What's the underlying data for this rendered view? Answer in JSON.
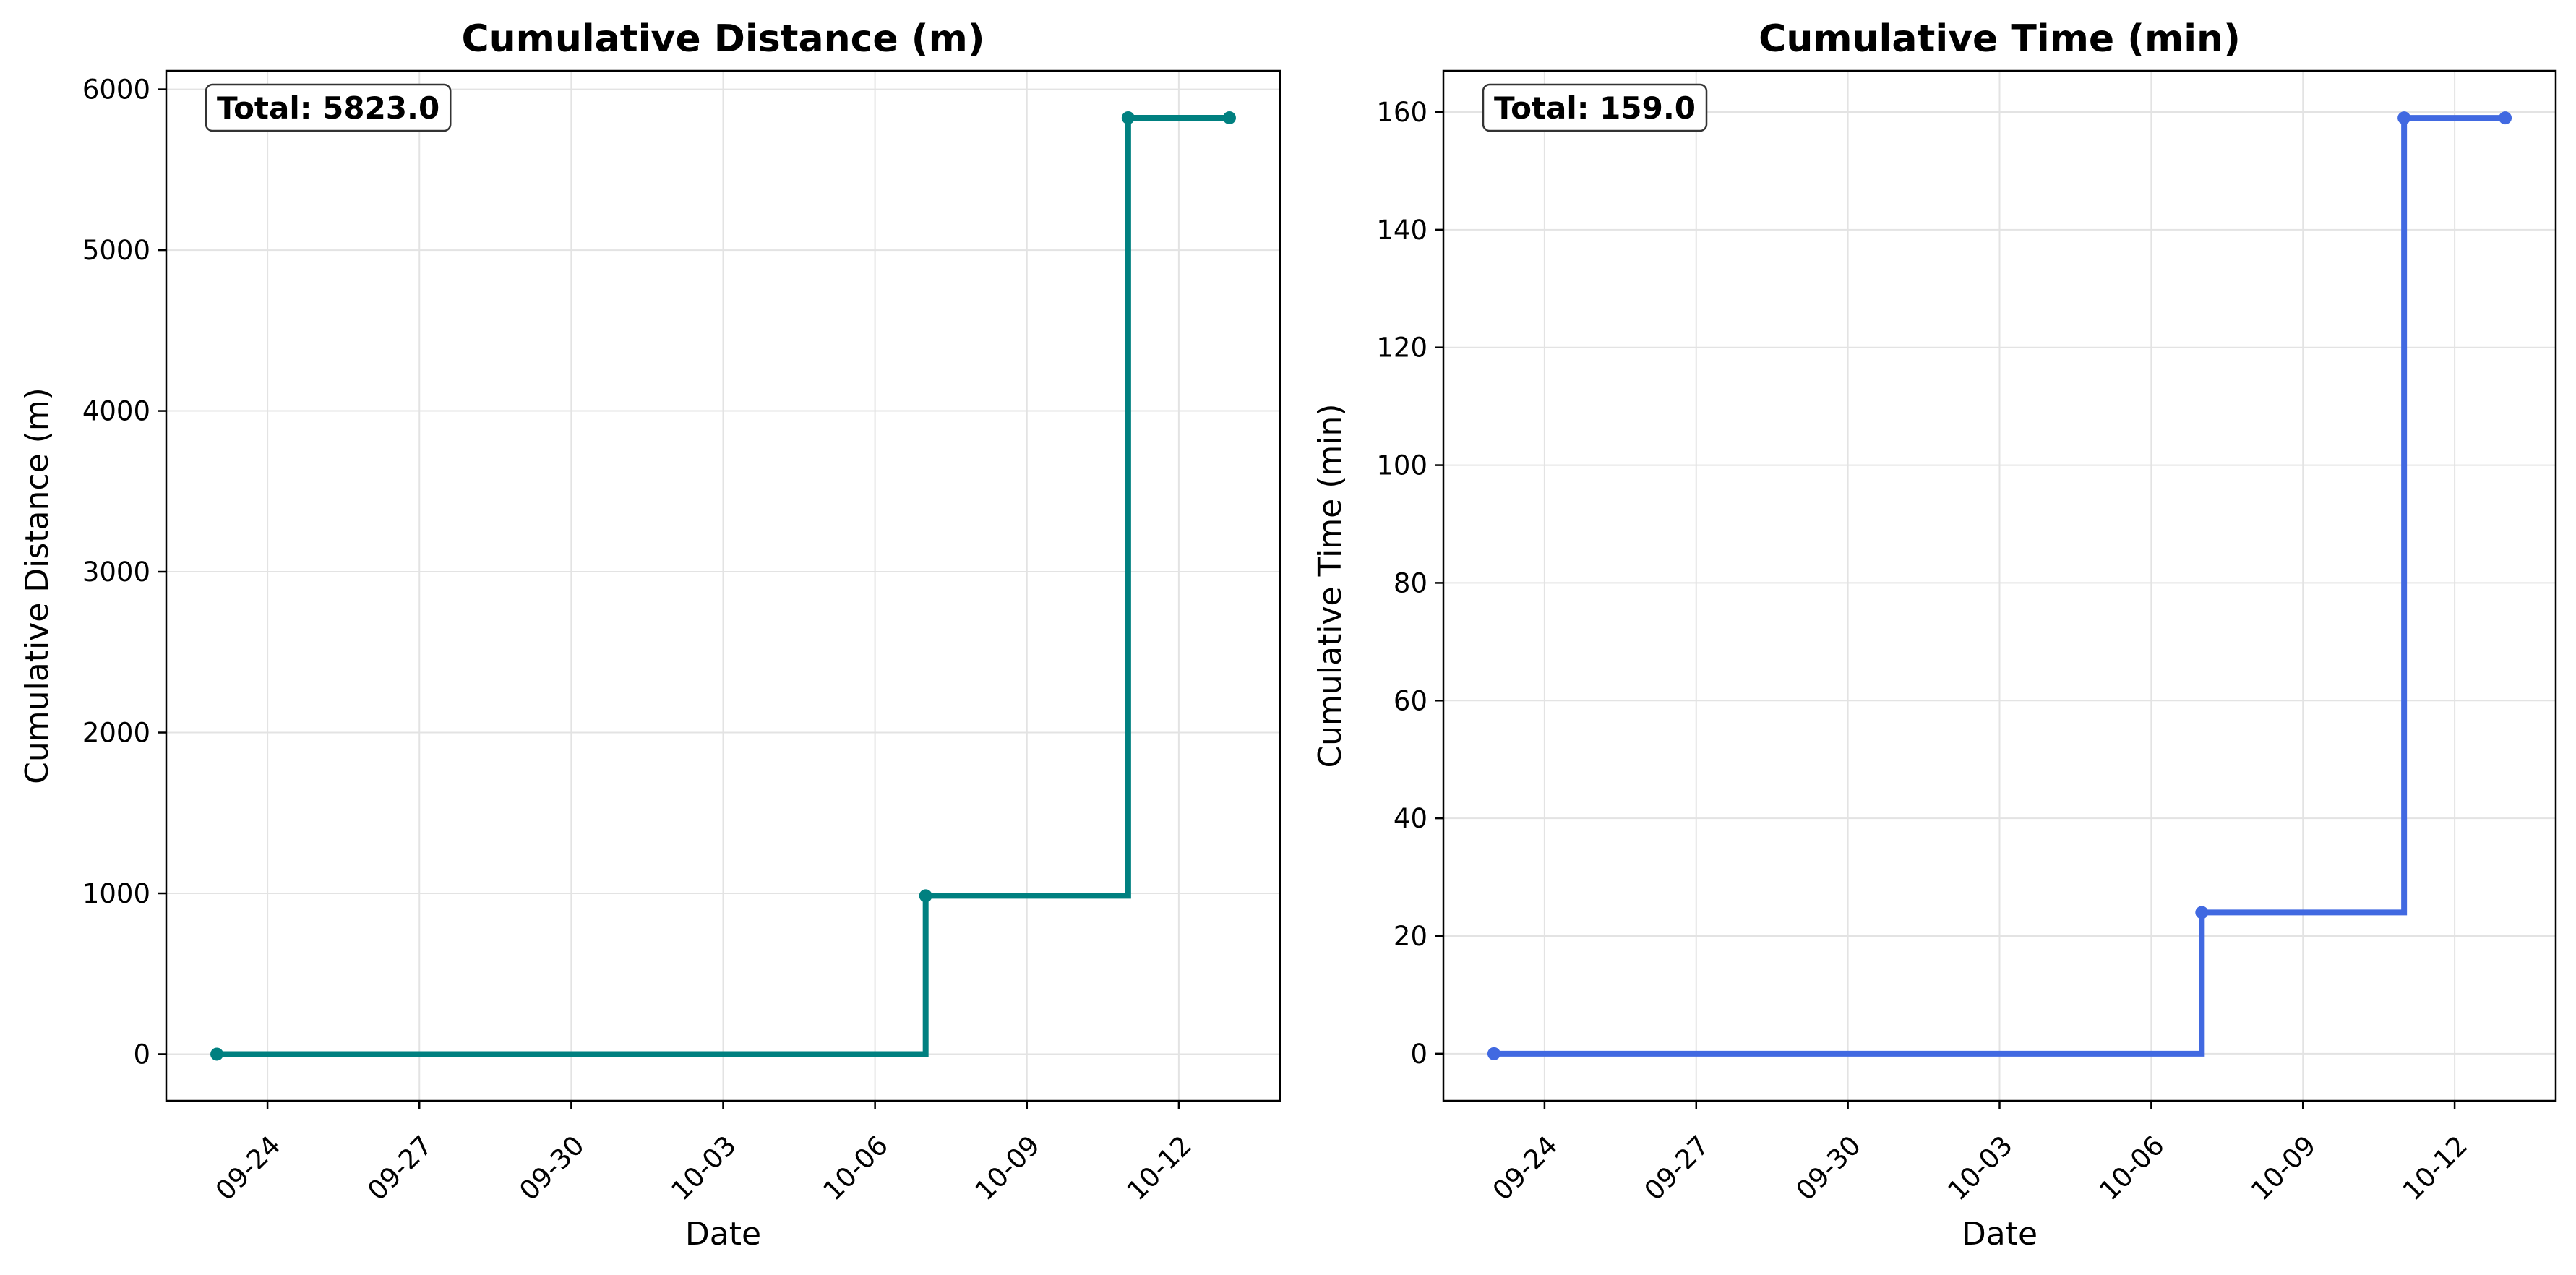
{
  "chart_data": [
    {
      "type": "line",
      "step": "post",
      "title": "Cumulative Distance (m)",
      "xlabel": "Date",
      "ylabel": "Cumulative Distance (m)",
      "x": [
        "2025-09-23",
        "2025-10-07",
        "2025-10-11",
        "2025-10-13"
      ],
      "values": [
        0,
        985,
        5823,
        5823
      ],
      "ylim": [
        -290,
        6115
      ],
      "xlim": [
        "2025-09-22",
        "2025-10-14"
      ],
      "yticks": [
        0,
        1000,
        2000,
        3000,
        4000,
        5000,
        6000
      ],
      "xticks": [
        "09-24",
        "09-27",
        "09-30",
        "10-03",
        "10-06",
        "10-09",
        "10-12"
      ],
      "annotation": "Total: 5823.0",
      "color": "#008080",
      "grid": true
    },
    {
      "type": "line",
      "step": "post",
      "title": "Cumulative Time (min)",
      "xlabel": "Date",
      "ylabel": "Cumulative Time (min)",
      "x": [
        "2025-09-23",
        "2025-10-07",
        "2025-10-11",
        "2025-10-13"
      ],
      "values": [
        0,
        24,
        159,
        159
      ],
      "ylim": [
        -8,
        167
      ],
      "xlim": [
        "2025-09-22",
        "2025-10-14"
      ],
      "yticks": [
        0,
        20,
        40,
        60,
        80,
        100,
        120,
        140,
        160
      ],
      "xticks": [
        "09-24",
        "09-27",
        "09-30",
        "10-03",
        "10-06",
        "10-09",
        "10-12"
      ],
      "annotation": "Total: 159.0",
      "color": "#4169E1",
      "grid": true
    }
  ]
}
